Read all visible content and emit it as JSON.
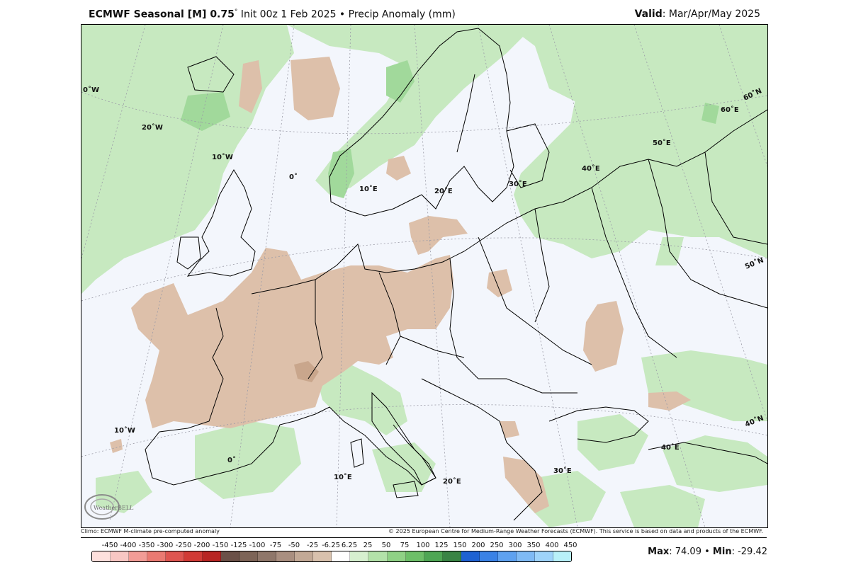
{
  "header": {
    "title_bold": "ECMWF Seasonal [M] 0.75",
    "title_rest": " Init 00z 1 Feb 2025 • Precip Anomaly (mm)",
    "degree": "°",
    "valid_label": "Valid",
    "valid_value": ": Mar/Apr/May 2025"
  },
  "map": {
    "lon_labels": [
      "0˚W",
      "20˚W",
      "10˚W",
      "0˚",
      "10˚E",
      "20˚E",
      "30˚E",
      "40˚E",
      "50˚E",
      "60˚E",
      "10˚W",
      "0˚",
      "10˚E",
      "20˚E",
      "30˚E",
      "40˚E"
    ],
    "lat_labels": [
      "60˚N",
      "50˚N",
      "40˚N"
    ],
    "colors": {
      "ocean": "#f3f6fc",
      "wet": "#c7e9c0",
      "wet_strong": "#a1d99b",
      "dry": "#ddc0aa",
      "dry_strong": "#c9a68c",
      "border": "#000000"
    }
  },
  "footer": {
    "climo": "Climo: ECMWF M-climate pre-computed anomaly",
    "copyright": "© 2025 European Centre for Medium-Range Weather Forecasts (ECMWF). This service is based on data and products of the ECMWF."
  },
  "colorbar": {
    "ticks": [
      "-450",
      "-400",
      "-350",
      "-300",
      "-250",
      "-200",
      "-150",
      "-125",
      "-100",
      "-75",
      "-50",
      "-25",
      "-6.25",
      "6.25",
      "25",
      "50",
      "75",
      "100",
      "125",
      "150",
      "200",
      "250",
      "300",
      "350",
      "400",
      "450"
    ],
    "colors": [
      "#fde0dd",
      "#f8c7c3",
      "#f29c96",
      "#ea7a72",
      "#de5550",
      "#d13b36",
      "#b82523",
      "#6b5148",
      "#7d6457",
      "#8f776a",
      "#a98f80",
      "#c2a996",
      "#d8c1ad",
      "#ffffff",
      "#d6f0cf",
      "#b3e2a9",
      "#8fd185",
      "#6dbf68",
      "#4ea654",
      "#3a8445",
      "#1e62d2",
      "#3a82e6",
      "#5ea1f0",
      "#7fbaf5",
      "#9ed3fa",
      "#b8f0f8"
    ]
  },
  "stats": {
    "max_label": "Max",
    "max_value": ": 74.09 • ",
    "min_label": "Min",
    "min_value": ": -29.42"
  },
  "logo": {
    "text": "WeatherBELL"
  }
}
